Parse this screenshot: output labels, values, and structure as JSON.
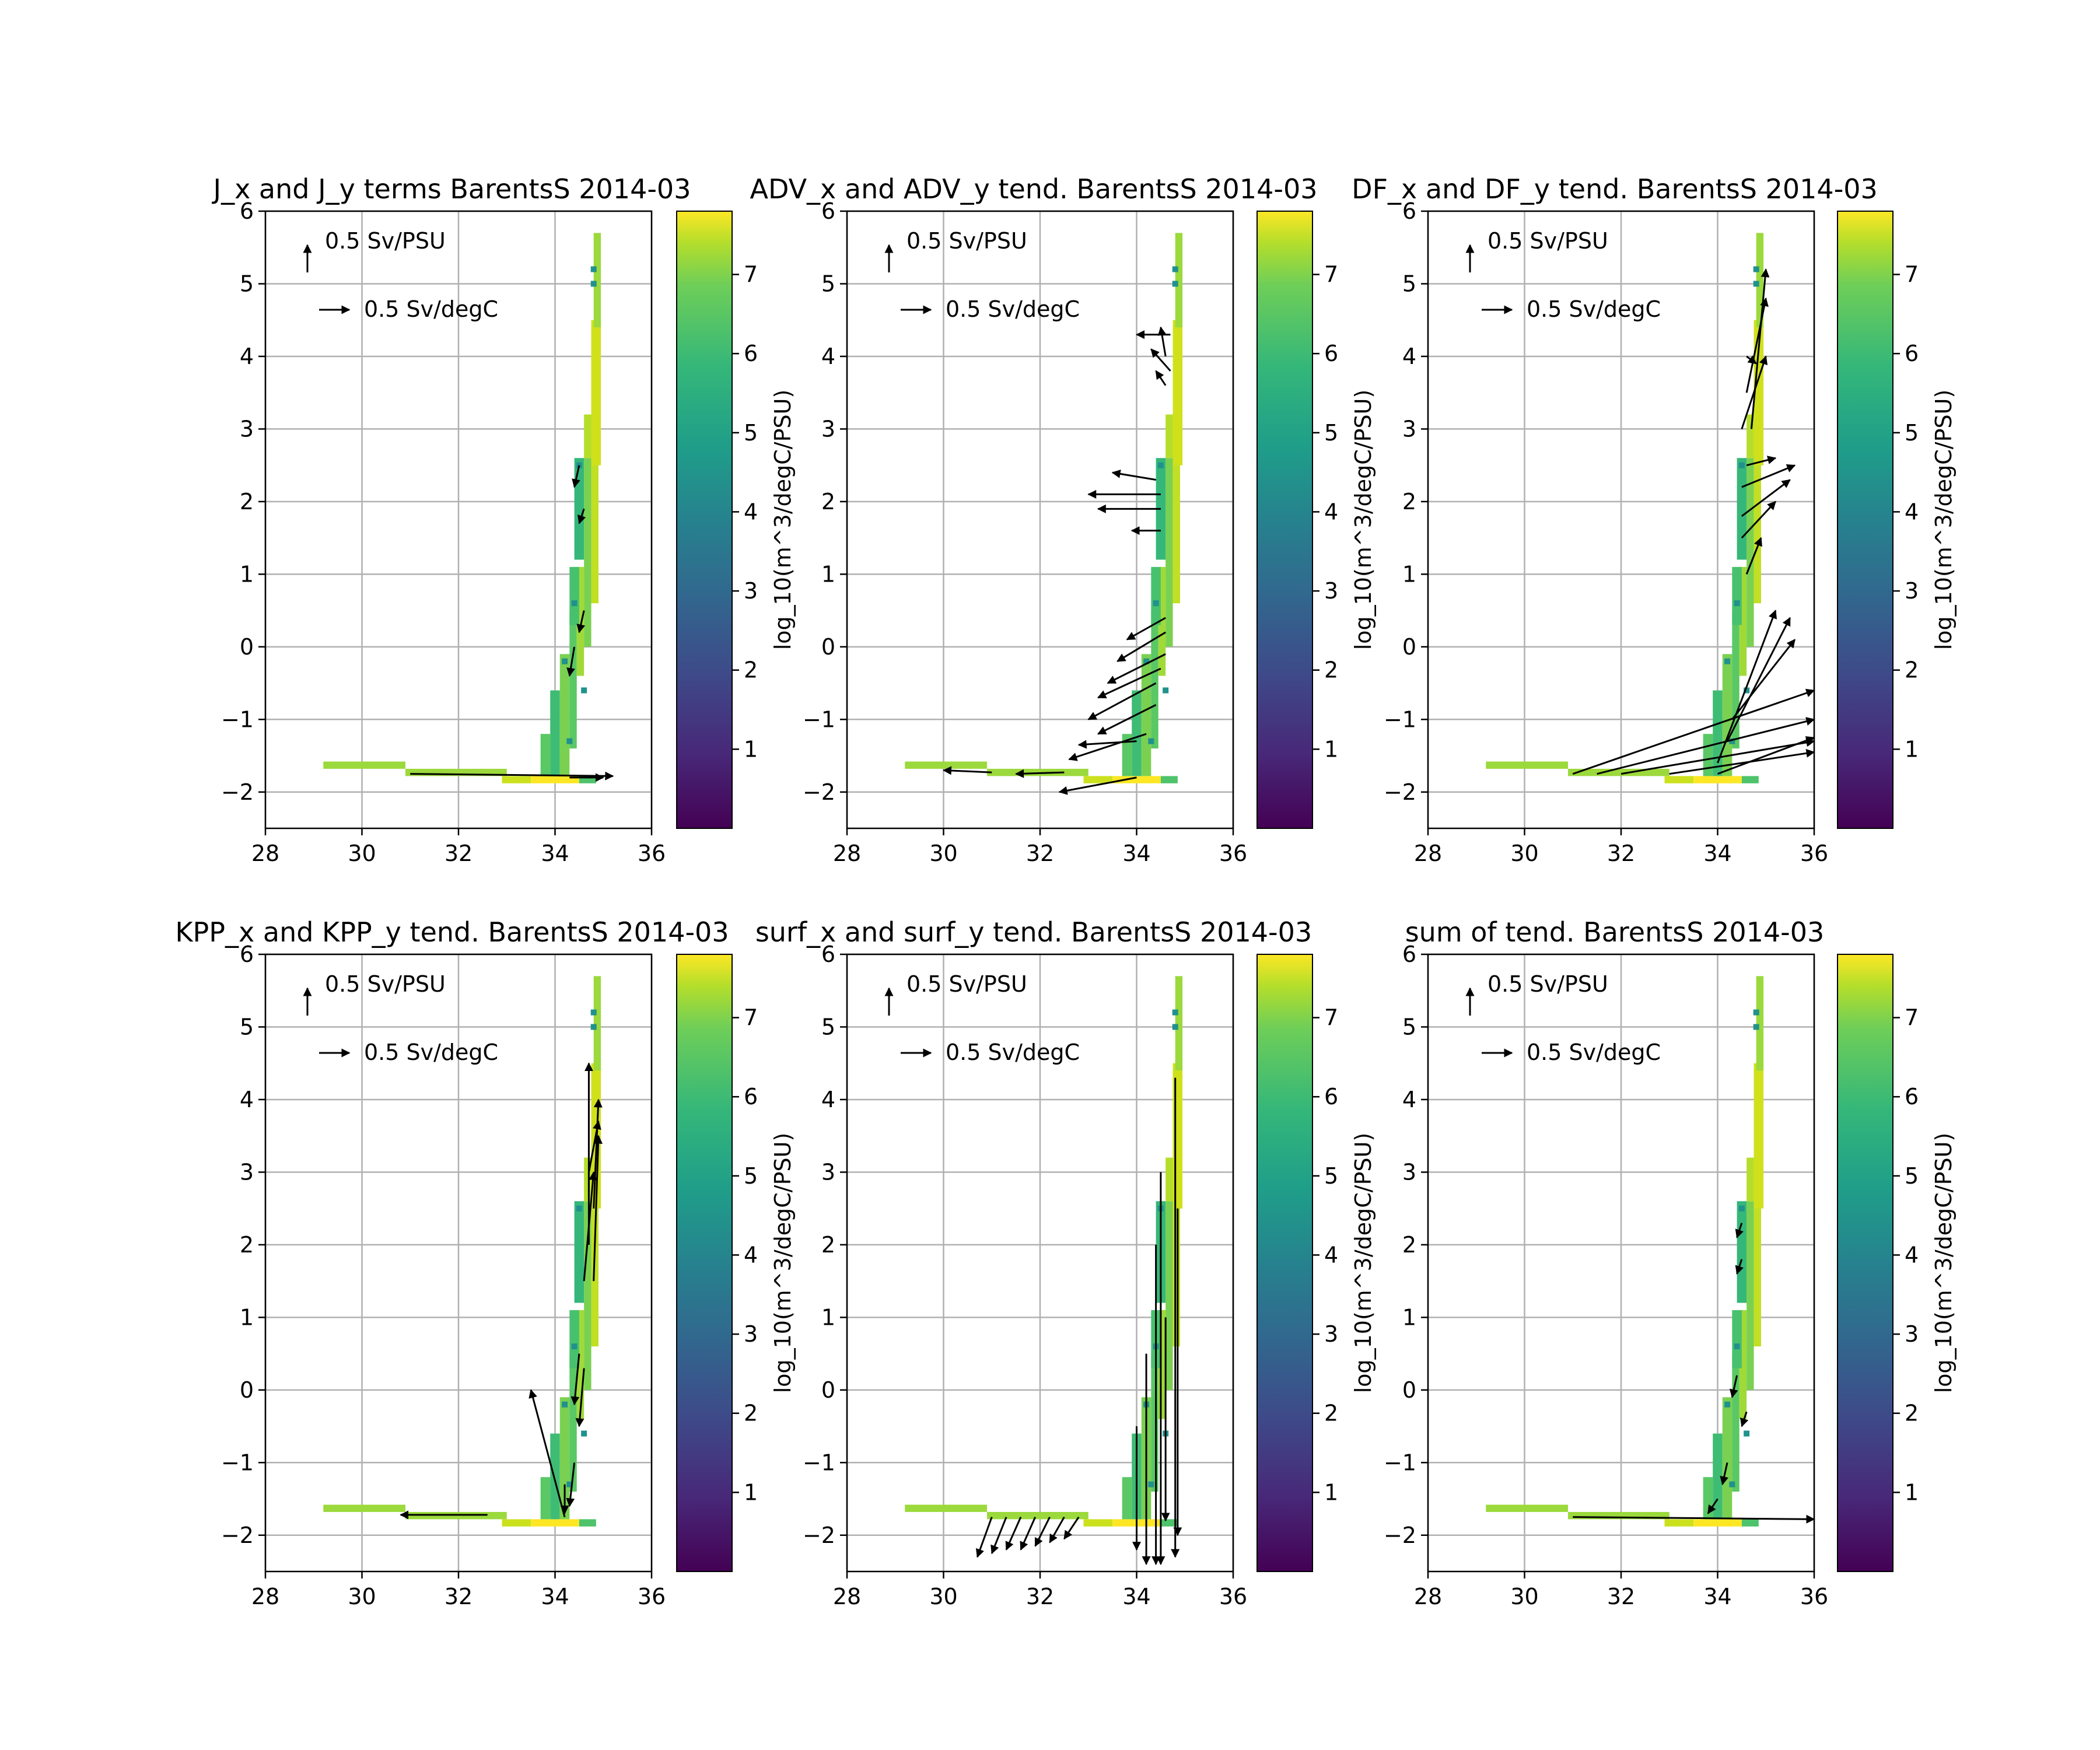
{
  "chart_data": [
    {
      "type": "scatter",
      "title": "J_x and J_y terms BarentsS 2014-03",
      "x_ticks": [
        "28",
        "30",
        "32",
        "34",
        "36"
      ],
      "y_ticks": [
        "−2",
        "−1",
        "0",
        "1",
        "2",
        "3",
        "4",
        "5",
        "6"
      ],
      "xlim": [
        28,
        36
      ],
      "ylim": [
        -2.5,
        6
      ],
      "grid": true,
      "quiver_key": {
        "vertical": "0.5 Sv/PSU",
        "horizontal": "0.5 Sv/degC"
      },
      "colorbar": {
        "label": "log_10(m^3/degC/PSU)",
        "ticks": [
          "1",
          "2",
          "3",
          "4",
          "5",
          "6",
          "7"
        ],
        "range": [
          0,
          7.8
        ],
        "colormap": "viridis"
      },
      "arrows": [
        [
          31.0,
          -1.75,
          35.2,
          -1.78
        ],
        [
          34.3,
          -1.8,
          35.0,
          -1.8
        ],
        [
          34.4,
          0.0,
          34.3,
          -0.4
        ],
        [
          34.6,
          0.5,
          34.5,
          0.2
        ],
        [
          34.5,
          2.5,
          34.4,
          2.2
        ],
        [
          34.6,
          1.9,
          34.5,
          1.7
        ]
      ]
    },
    {
      "type": "scatter",
      "title": "ADV_x and ADV_y tend. BarentsS 2014-03",
      "x_ticks": [
        "28",
        "30",
        "32",
        "34",
        "36"
      ],
      "y_ticks": [
        "−2",
        "−1",
        "0",
        "1",
        "2",
        "3",
        "4",
        "5",
        "6"
      ],
      "xlim": [
        28,
        36
      ],
      "ylim": [
        -2.5,
        6
      ],
      "grid": true,
      "quiver_key": {
        "vertical": "0.5 Sv/PSU",
        "horizontal": "0.5 Sv/degC"
      },
      "colorbar": {
        "label": "log_10(m^3/degC/PSU)",
        "ticks": [
          "1",
          "2",
          "3",
          "4",
          "5",
          "6",
          "7"
        ],
        "range": [
          0,
          7.8
        ],
        "colormap": "viridis"
      },
      "arrows": [
        [
          31.0,
          -1.73,
          30.0,
          -1.7
        ],
        [
          32.5,
          -1.73,
          31.5,
          -1.75
        ],
        [
          34.0,
          -1.8,
          32.4,
          -2.0
        ],
        [
          34.0,
          -1.3,
          32.8,
          -1.35
        ],
        [
          34.2,
          -1.2,
          32.6,
          -1.55
        ],
        [
          34.4,
          -0.8,
          33.2,
          -1.2
        ],
        [
          34.4,
          -0.5,
          33.0,
          -1.0
        ],
        [
          34.5,
          -0.3,
          33.2,
          -0.7
        ],
        [
          34.6,
          -0.1,
          33.4,
          -0.5
        ],
        [
          34.6,
          0.2,
          33.6,
          -0.2
        ],
        [
          34.6,
          0.4,
          33.8,
          0.1
        ],
        [
          34.5,
          2.1,
          33.0,
          2.1
        ],
        [
          34.5,
          1.9,
          33.2,
          1.9
        ],
        [
          34.5,
          1.6,
          33.9,
          1.6
        ],
        [
          34.4,
          2.3,
          33.5,
          2.4
        ],
        [
          34.6,
          3.6,
          34.4,
          3.8
        ],
        [
          34.7,
          3.8,
          34.3,
          4.1
        ],
        [
          34.7,
          4.3,
          34.0,
          4.3
        ],
        [
          34.6,
          4.0,
          34.5,
          4.4
        ]
      ]
    },
    {
      "type": "scatter",
      "title": "DF_x and DF_y tend. BarentsS 2014-03",
      "x_ticks": [
        "28",
        "30",
        "32",
        "34",
        "36"
      ],
      "y_ticks": [
        "−2",
        "−1",
        "0",
        "1",
        "2",
        "3",
        "4",
        "5",
        "6"
      ],
      "xlim": [
        28,
        36
      ],
      "ylim": [
        -2.5,
        6
      ],
      "grid": true,
      "quiver_key": {
        "vertical": "0.5 Sv/PSU",
        "horizontal": "0.5 Sv/degC"
      },
      "colorbar": {
        "label": "log_10(m^3/degC/PSU)",
        "ticks": [
          "1",
          "2",
          "3",
          "4",
          "5",
          "6",
          "7"
        ],
        "range": [
          0,
          7.8
        ],
        "colormap": "viridis"
      },
      "arrows": [
        [
          31.0,
          -1.75,
          36.0,
          -0.6
        ],
        [
          31.5,
          -1.75,
          36.0,
          -1.0
        ],
        [
          32.0,
          -1.75,
          36.0,
          -1.3
        ],
        [
          33.0,
          -1.75,
          36.0,
          -1.45
        ],
        [
          34.0,
          -1.75,
          36.0,
          -1.25
        ],
        [
          34.0,
          -1.6,
          35.2,
          0.5
        ],
        [
          34.2,
          -1.3,
          35.5,
          0.4
        ],
        [
          34.3,
          -1.0,
          35.6,
          0.1
        ],
        [
          34.5,
          1.5,
          35.2,
          2.0
        ],
        [
          34.5,
          2.2,
          35.6,
          2.5
        ],
        [
          34.5,
          1.8,
          35.5,
          2.3
        ],
        [
          34.6,
          2.5,
          35.2,
          2.6
        ],
        [
          34.6,
          3.5,
          35.0,
          4.8
        ],
        [
          34.7,
          3.0,
          35.0,
          5.2
        ],
        [
          34.6,
          4.0,
          34.8,
          3.9
        ],
        [
          34.5,
          3.0,
          35.0,
          4.0
        ],
        [
          34.6,
          1.0,
          34.9,
          1.5
        ]
      ]
    },
    {
      "type": "scatter",
      "title": "KPP_x and KPP_y tend. BarentsS 2014-03",
      "x_ticks": [
        "28",
        "30",
        "32",
        "34",
        "36"
      ],
      "y_ticks": [
        "−2",
        "−1",
        "0",
        "1",
        "2",
        "3",
        "4",
        "5",
        "6"
      ],
      "xlim": [
        28,
        36
      ],
      "ylim": [
        -2.5,
        6
      ],
      "grid": true,
      "quiver_key": {
        "vertical": "0.5 Sv/PSU",
        "horizontal": "0.5 Sv/degC"
      },
      "colorbar": {
        "label": "log_10(m^3/degC/PSU)",
        "ticks": [
          "1",
          "2",
          "3",
          "4",
          "5",
          "6",
          "7"
        ],
        "range": [
          0,
          7.8
        ],
        "colormap": "viridis"
      },
      "arrows": [
        [
          34.2,
          -1.75,
          33.5,
          0.0
        ],
        [
          32.6,
          -1.72,
          30.8,
          -1.72
        ],
        [
          34.2,
          -1.3,
          34.2,
          -1.7
        ],
        [
          34.4,
          -1.0,
          34.3,
          -1.6
        ],
        [
          34.5,
          0.5,
          34.4,
          -0.2
        ],
        [
          34.6,
          0.3,
          34.5,
          -0.5
        ],
        [
          34.7,
          2.0,
          34.7,
          4.5
        ],
        [
          34.8,
          2.5,
          34.9,
          4.0
        ],
        [
          34.7,
          3.0,
          34.9,
          3.7
        ],
        [
          34.6,
          1.5,
          34.8,
          3.0
        ],
        [
          34.8,
          1.5,
          34.9,
          3.5
        ]
      ]
    },
    {
      "type": "scatter",
      "title": "surf_x and surf_y tend. BarentsS 2014-03",
      "x_ticks": [
        "28",
        "30",
        "32",
        "34",
        "36"
      ],
      "y_ticks": [
        "−2",
        "−1",
        "0",
        "1",
        "2",
        "3",
        "4",
        "5",
        "6"
      ],
      "xlim": [
        28,
        36
      ],
      "ylim": [
        -2.5,
        6
      ],
      "grid": true,
      "quiver_key": {
        "vertical": "0.5 Sv/PSU",
        "horizontal": "0.5 Sv/degC"
      },
      "colorbar": {
        "label": "log_10(m^3/degC/PSU)",
        "ticks": [
          "1",
          "2",
          "3",
          "4",
          "5",
          "6",
          "7"
        ],
        "range": [
          0,
          7.8
        ],
        "colormap": "viridis"
      },
      "arrows": [
        [
          31.0,
          -1.75,
          30.7,
          -2.3
        ],
        [
          31.3,
          -1.75,
          31.0,
          -2.25
        ],
        [
          31.6,
          -1.75,
          31.3,
          -2.2
        ],
        [
          31.9,
          -1.75,
          31.6,
          -2.2
        ],
        [
          32.2,
          -1.75,
          31.9,
          -2.15
        ],
        [
          32.5,
          -1.75,
          32.2,
          -2.1
        ],
        [
          32.8,
          -1.75,
          32.5,
          -2.05
        ],
        [
          34.0,
          -0.5,
          34.0,
          -2.2
        ],
        [
          34.2,
          0.5,
          34.2,
          -2.4
        ],
        [
          34.4,
          2.0,
          34.4,
          -2.4
        ],
        [
          34.5,
          3.0,
          34.5,
          -2.4
        ],
        [
          34.6,
          1.0,
          34.6,
          -1.8
        ],
        [
          34.8,
          4.3,
          34.8,
          -2.3
        ],
        [
          34.85,
          2.5,
          34.85,
          -2.0
        ]
      ]
    },
    {
      "type": "scatter",
      "title": "sum of tend. BarentsS 2014-03",
      "x_ticks": [
        "28",
        "30",
        "32",
        "34",
        "36"
      ],
      "y_ticks": [
        "−2",
        "−1",
        "0",
        "1",
        "2",
        "3",
        "4",
        "5",
        "6"
      ],
      "xlim": [
        28,
        36
      ],
      "ylim": [
        -2.5,
        6
      ],
      "grid": true,
      "quiver_key": {
        "vertical": "0.5 Sv/PSU",
        "horizontal": "0.5 Sv/degC"
      },
      "colorbar": {
        "label": "log_10(m^3/degC/PSU)",
        "ticks": [
          "1",
          "2",
          "3",
          "4",
          "5",
          "6",
          "7"
        ],
        "range": [
          0,
          7.8
        ],
        "colormap": "viridis"
      },
      "arrows": [
        [
          31.0,
          -1.75,
          36.0,
          -1.78
        ],
        [
          34.0,
          -1.5,
          33.8,
          -1.7
        ],
        [
          34.2,
          -1.0,
          34.1,
          -1.3
        ],
        [
          34.4,
          0.2,
          34.3,
          -0.1
        ],
        [
          34.5,
          1.8,
          34.4,
          1.6
        ],
        [
          34.5,
          2.3,
          34.4,
          2.1
        ],
        [
          34.6,
          -0.3,
          34.5,
          -0.5
        ]
      ]
    }
  ]
}
